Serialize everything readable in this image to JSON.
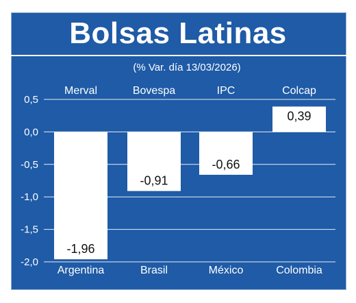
{
  "title": "Bolsas Latinas",
  "colors": {
    "panel": "#1f5ba6",
    "bar": "#ffffff",
    "text": "#ffffff",
    "grid": "#ffffff"
  },
  "chart_data": {
    "type": "bar",
    "title": "Bolsas Latinas",
    "subtitle": "(% Var. día 13/03/2026)",
    "xlabel": "",
    "ylabel": "",
    "ylim": [
      -2.0,
      0.5
    ],
    "yticks": [
      "0,5",
      "0,0",
      "-0,5",
      "-1,0",
      "-1,5",
      "-2,0"
    ],
    "grid": true,
    "legend": "none",
    "categories": [
      "Argentina",
      "Brasil",
      "México",
      "Colombia"
    ],
    "index_names": [
      "Merval",
      "Bovespa",
      "IPC",
      "Colcap"
    ],
    "values": [
      -1.96,
      -0.91,
      -0.66,
      0.39
    ],
    "value_labels": [
      "-1,96",
      "-0,91",
      "-0,66",
      "0,39"
    ]
  }
}
